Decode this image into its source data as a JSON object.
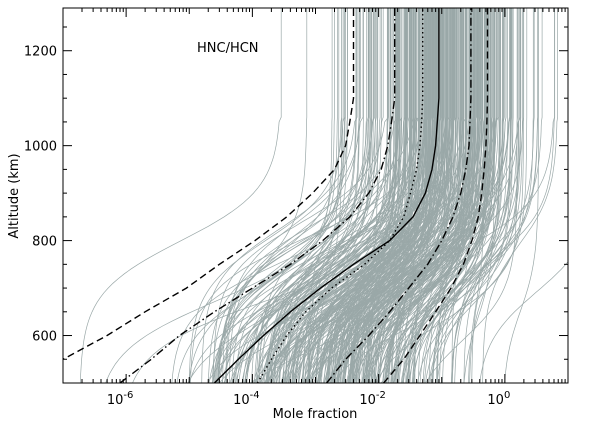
{
  "chart_data": {
    "type": "line",
    "annotation": "HNC/HCN",
    "xlabel": "Mole fraction",
    "ylabel": "Altitude (km)",
    "x_scale": "log",
    "xlim": [
      1e-07,
      10
    ],
    "ylim": [
      500,
      1290
    ],
    "x_ticks": [
      {
        "value": 1e-06,
        "base": "10",
        "exp": "-6"
      },
      {
        "value": 0.0001,
        "base": "10",
        "exp": "-4"
      },
      {
        "value": 0.01,
        "base": "10",
        "exp": "-2"
      },
      {
        "value": 1,
        "base": "10",
        "exp": "0"
      }
    ],
    "y_ticks": [
      600,
      800,
      1000,
      1200
    ],
    "grid": false,
    "legend": "none",
    "colors": {
      "ensemble": "#9aa8a8",
      "statistics": "#000000"
    },
    "ensemble": {
      "description_count": 400,
      "profile_form": "log10_x_vs_altitude",
      "upper_log10_median": -1.0,
      "upper_log10_sigma": 0.75,
      "lower_log10_median": -2.9,
      "lower_log10_sigma": 1.5
    },
    "series": [
      {
        "style": "solid",
        "altitude": [
          500,
          550,
          600,
          650,
          700,
          750,
          800,
          850,
          900,
          950,
          1000,
          1050,
          1100,
          1150,
          1200,
          1290
        ],
        "values": [
          2.5e-05,
          6e-05,
          0.00015,
          0.0004,
          0.0012,
          0.004,
          0.015,
          0.035,
          0.055,
          0.07,
          0.08,
          0.085,
          0.09,
          0.09,
          0.09,
          0.09
        ]
      },
      {
        "style": "dotted",
        "altitude": [
          500,
          550,
          600,
          650,
          700,
          750,
          800,
          850,
          900,
          950,
          1000,
          1050,
          1100,
          1150,
          1200,
          1290
        ],
        "values": [
          0.00012,
          0.0002,
          0.00035,
          0.0007,
          0.0018,
          0.006,
          0.015,
          0.025,
          0.032,
          0.04,
          0.045,
          0.048,
          0.05,
          0.05,
          0.05,
          0.05
        ]
      },
      {
        "style": "dash-dot",
        "altitude": [
          500,
          550,
          600,
          650,
          700,
          750,
          800,
          850,
          900,
          950,
          1000,
          1050,
          1100,
          1150,
          1200,
          1290
        ],
        "values": [
          8e-07,
          2.5e-06,
          7e-06,
          2.5e-05,
          0.0001,
          0.0004,
          0.0013,
          0.0035,
          0.007,
          0.011,
          0.014,
          0.016,
          0.018,
          0.018,
          0.018,
          0.018
        ]
      },
      {
        "style": "dash-dot",
        "altitude": [
          500,
          550,
          600,
          650,
          700,
          750,
          800,
          850,
          900,
          950,
          1000,
          1050,
          1100,
          1150,
          1200,
          1290
        ],
        "values": [
          0.0015,
          0.003,
          0.007,
          0.015,
          0.03,
          0.06,
          0.1,
          0.15,
          0.2,
          0.24,
          0.27,
          0.28,
          0.29,
          0.29,
          0.29,
          0.29
        ]
      },
      {
        "style": "dashed",
        "altitude": [
          500,
          550,
          600,
          650,
          700,
          750,
          800,
          850,
          900,
          950,
          1000,
          1050,
          1100,
          1150,
          1200,
          1290
        ],
        "values": [
          6e-08,
          1e-07,
          5e-07,
          2e-06,
          9e-06,
          3e-05,
          0.00011,
          0.00035,
          0.0009,
          0.002,
          0.003,
          0.0035,
          0.004,
          0.004,
          0.004,
          0.004
        ]
      },
      {
        "style": "dashed",
        "altitude": [
          500,
          550,
          600,
          650,
          700,
          750,
          800,
          850,
          900,
          950,
          1000,
          1050,
          1100,
          1150,
          1200,
          1290
        ],
        "values": [
          0.012,
          0.025,
          0.045,
          0.08,
          0.14,
          0.22,
          0.3,
          0.38,
          0.43,
          0.47,
          0.5,
          0.52,
          0.53,
          0.53,
          0.53,
          0.53
        ]
      }
    ]
  }
}
